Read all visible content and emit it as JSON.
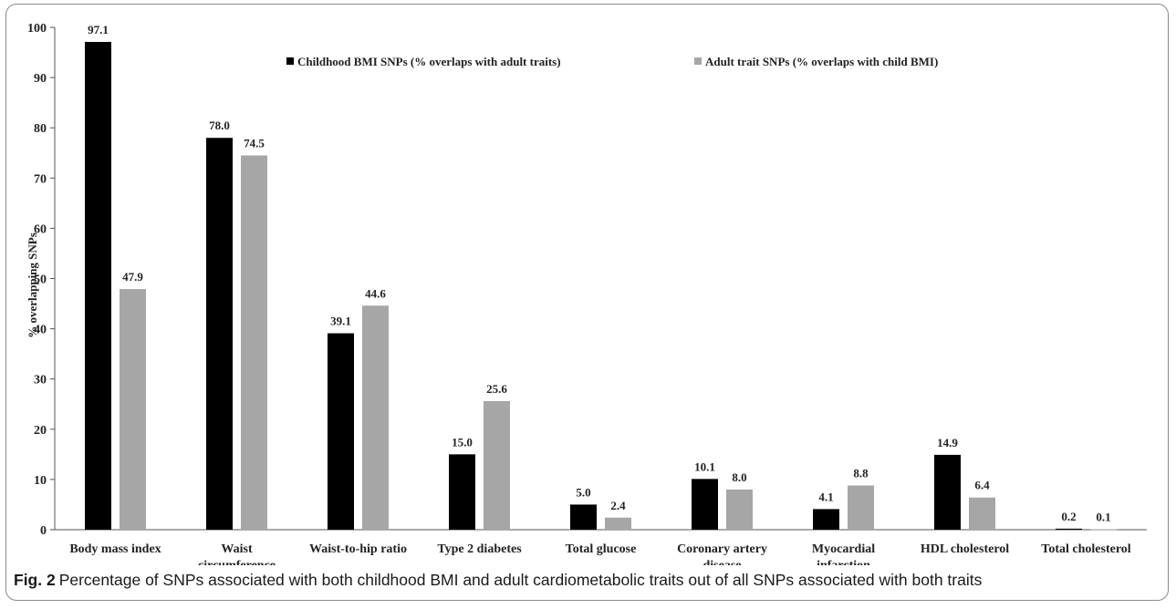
{
  "chart_data": {
    "type": "bar",
    "categories": [
      [
        "Body mass index"
      ],
      [
        "Waist",
        "circumference"
      ],
      [
        "Waist-to-hip ratio"
      ],
      [
        "Type 2 diabetes"
      ],
      [
        "Total glucose"
      ],
      [
        "Coronary artery",
        "disease"
      ],
      [
        "Myocardial",
        "infarction"
      ],
      [
        "HDL cholesterol"
      ],
      [
        "Total cholesterol"
      ]
    ],
    "series": [
      {
        "name": "Childhood BMI SNPs (% overlaps with adult traits)",
        "color": "#000000",
        "values": [
          97.1,
          78.0,
          39.1,
          15.0,
          5.0,
          10.1,
          4.1,
          14.9,
          0.2
        ],
        "labels": [
          "97.1",
          "78.0",
          "39.1",
          "15.0",
          "5.0",
          "10.1",
          "4.1",
          "14.9",
          "0.2"
        ]
      },
      {
        "name": "Adult trait SNPs (% overlaps with child BMI)",
        "color": "#a6a6a6",
        "values": [
          47.9,
          74.5,
          44.6,
          25.6,
          2.4,
          8.0,
          8.8,
          6.4,
          0.1
        ],
        "labels": [
          "47.9",
          "74.5",
          "44.6",
          "25.6",
          "2.4",
          "8.0",
          "8.8",
          "6.4",
          "0.1"
        ]
      }
    ],
    "ylabel": "% overlapping SNPs",
    "xlabel": "",
    "ylim": [
      0,
      100
    ],
    "yticks": [
      0,
      10,
      20,
      30,
      40,
      50,
      60,
      70,
      80,
      90,
      100
    ],
    "grid": false,
    "legend": "top"
  },
  "caption": {
    "label": "Fig. 2",
    "text": "Percentage of SNPs associated with both childhood BMI and adult cardiometabolic traits out of all SNPs associated with both traits"
  }
}
